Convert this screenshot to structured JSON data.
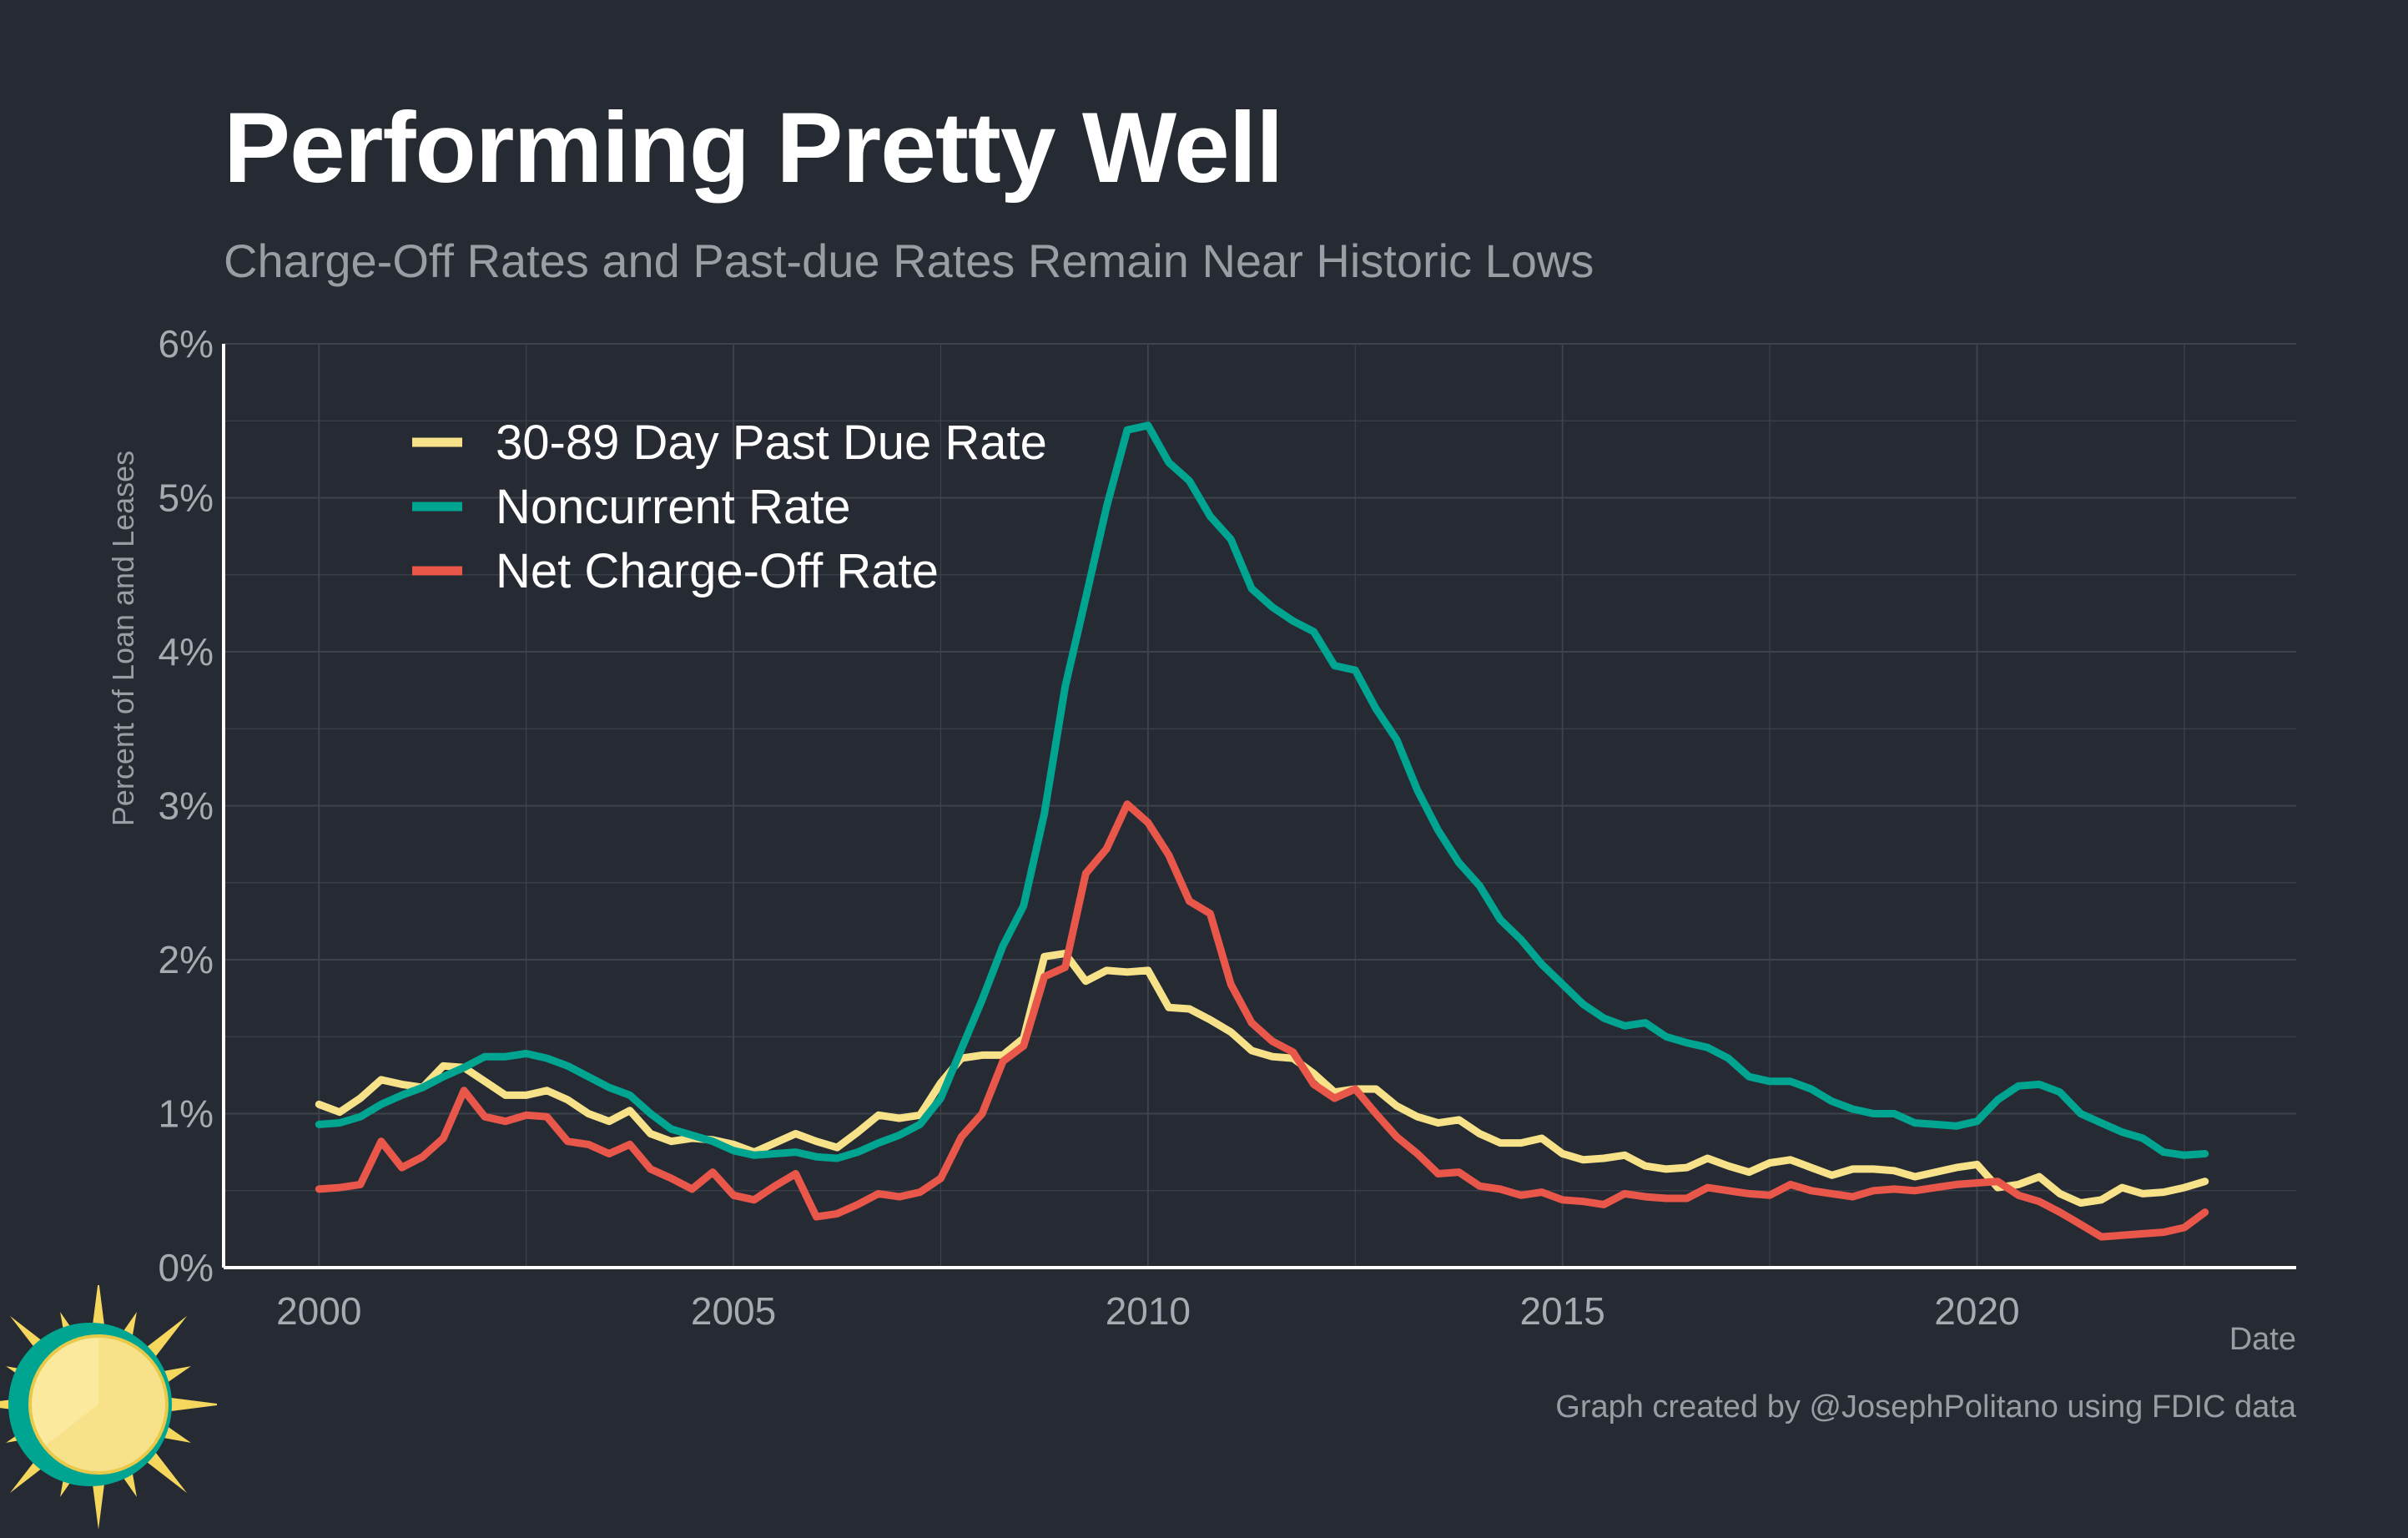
{
  "chart_data": {
    "type": "line",
    "title": "Performing Pretty Well",
    "subtitle": "Charge-Off Rates and Past-due Rates Remain Near Historic Lows",
    "xlabel": "Date",
    "ylabel": "Percent of Loan and Leases",
    "credit": "Graph created by @JosephPolitano using FDIC data",
    "xlim": [
      1998.85,
      2023.85
    ],
    "ylim": [
      0,
      6
    ],
    "x_ticks": [
      2000,
      2005,
      2010,
      2015,
      2020
    ],
    "x_tick_labels": [
      "2000",
      "2005",
      "2010",
      "2015",
      "2020"
    ],
    "y_ticks": [
      0,
      1,
      2,
      3,
      4,
      5,
      6
    ],
    "y_tick_labels": [
      "0%",
      "1%",
      "2%",
      "3%",
      "4%",
      "5%",
      "6%"
    ],
    "grid": true,
    "legend_position": "top-left",
    "series": [
      {
        "name": "30-89 Day Past Due Rate",
        "color": "#f7e189",
        "x": [
          2000.0,
          2000.25,
          2000.5,
          2000.75,
          2001.0,
          2001.25,
          2001.5,
          2001.75,
          2002.0,
          2002.25,
          2002.5,
          2002.75,
          2003.0,
          2003.25,
          2003.5,
          2003.75,
          2004.0,
          2004.25,
          2004.5,
          2004.75,
          2005.0,
          2005.25,
          2005.5,
          2005.75,
          2006.0,
          2006.25,
          2006.5,
          2006.75,
          2007.0,
          2007.25,
          2007.5,
          2007.75,
          2008.0,
          2008.25,
          2008.5,
          2008.75,
          2009.0,
          2009.25,
          2009.5,
          2009.75,
          2010.0,
          2010.25,
          2010.5,
          2010.75,
          2011.0,
          2011.25,
          2011.5,
          2011.75,
          2012.0,
          2012.25,
          2012.5,
          2012.75,
          2013.0,
          2013.25,
          2013.5,
          2013.75,
          2014.0,
          2014.25,
          2014.5,
          2014.75,
          2015.0,
          2015.25,
          2015.5,
          2015.75,
          2016.0,
          2016.25,
          2016.5,
          2016.75,
          2017.0,
          2017.25,
          2017.5,
          2017.75,
          2018.0,
          2018.25,
          2018.5,
          2018.75,
          2019.0,
          2019.25,
          2019.5,
          2019.75,
          2020.0,
          2020.25,
          2020.5,
          2020.75,
          2021.0,
          2021.25,
          2021.5,
          2021.75,
          2022.0,
          2022.25,
          2022.5,
          2022.75
        ],
        "values": [
          1.06,
          1.01,
          1.1,
          1.22,
          1.19,
          1.17,
          1.31,
          1.3,
          1.21,
          1.12,
          1.12,
          1.15,
          1.09,
          1.0,
          0.95,
          1.02,
          0.87,
          0.82,
          0.84,
          0.83,
          0.8,
          0.75,
          0.81,
          0.87,
          0.82,
          0.78,
          0.88,
          0.99,
          0.97,
          0.99,
          1.2,
          1.36,
          1.38,
          1.38,
          1.49,
          2.02,
          2.04,
          1.86,
          1.93,
          1.92,
          1.93,
          1.69,
          1.68,
          1.61,
          1.53,
          1.41,
          1.37,
          1.36,
          1.26,
          1.14,
          1.16,
          1.16,
          1.05,
          0.98,
          0.94,
          0.96,
          0.87,
          0.81,
          0.81,
          0.84,
          0.74,
          0.7,
          0.71,
          0.73,
          0.66,
          0.64,
          0.65,
          0.71,
          0.66,
          0.62,
          0.68,
          0.7,
          0.65,
          0.6,
          0.64,
          0.64,
          0.63,
          0.59,
          0.62,
          0.65,
          0.67,
          0.52,
          0.54,
          0.59,
          0.48,
          0.42,
          0.44,
          0.52,
          0.48,
          0.49,
          0.52,
          0.56
        ]
      },
      {
        "name": "Noncurrent Rate",
        "color": "#00a591",
        "x": [
          2000.0,
          2000.25,
          2000.5,
          2000.75,
          2001.0,
          2001.25,
          2001.5,
          2001.75,
          2002.0,
          2002.25,
          2002.5,
          2002.75,
          2003.0,
          2003.25,
          2003.5,
          2003.75,
          2004.0,
          2004.25,
          2004.5,
          2004.75,
          2005.0,
          2005.25,
          2005.5,
          2005.75,
          2006.0,
          2006.25,
          2006.5,
          2006.75,
          2007.0,
          2007.25,
          2007.5,
          2007.75,
          2008.0,
          2008.25,
          2008.5,
          2008.75,
          2009.0,
          2009.25,
          2009.5,
          2009.75,
          2010.0,
          2010.25,
          2010.5,
          2010.75,
          2011.0,
          2011.25,
          2011.5,
          2011.75,
          2012.0,
          2012.25,
          2012.5,
          2012.75,
          2013.0,
          2013.25,
          2013.5,
          2013.75,
          2014.0,
          2014.25,
          2014.5,
          2014.75,
          2015.0,
          2015.25,
          2015.5,
          2015.75,
          2016.0,
          2016.25,
          2016.5,
          2016.75,
          2017.0,
          2017.25,
          2017.5,
          2017.75,
          2018.0,
          2018.25,
          2018.5,
          2018.75,
          2019.0,
          2019.25,
          2019.5,
          2019.75,
          2020.0,
          2020.25,
          2020.5,
          2020.75,
          2021.0,
          2021.25,
          2021.5,
          2021.75,
          2022.0,
          2022.25,
          2022.5,
          2022.75
        ],
        "values": [
          0.93,
          0.94,
          0.98,
          1.06,
          1.12,
          1.17,
          1.24,
          1.3,
          1.37,
          1.37,
          1.39,
          1.36,
          1.31,
          1.24,
          1.17,
          1.12,
          1.0,
          0.9,
          0.86,
          0.82,
          0.76,
          0.73,
          0.74,
          0.75,
          0.72,
          0.71,
          0.75,
          0.81,
          0.86,
          0.93,
          1.1,
          1.42,
          1.74,
          2.09,
          2.35,
          2.95,
          3.77,
          4.35,
          4.94,
          5.44,
          5.47,
          5.23,
          5.11,
          4.88,
          4.73,
          4.41,
          4.29,
          4.2,
          4.13,
          3.91,
          3.88,
          3.63,
          3.43,
          3.1,
          2.84,
          2.63,
          2.48,
          2.26,
          2.13,
          1.97,
          1.84,
          1.71,
          1.62,
          1.57,
          1.59,
          1.5,
          1.46,
          1.43,
          1.36,
          1.24,
          1.21,
          1.21,
          1.16,
          1.08,
          1.03,
          1.0,
          1.0,
          0.94,
          0.93,
          0.92,
          0.95,
          1.09,
          1.18,
          1.19,
          1.14,
          1.0,
          0.94,
          0.88,
          0.84,
          0.75,
          0.73,
          0.74
        ]
      },
      {
        "name": "Net Charge-Off Rate",
        "color": "#e9564a",
        "x": [
          2000.0,
          2000.25,
          2000.5,
          2000.75,
          2001.0,
          2001.25,
          2001.5,
          2001.75,
          2002.0,
          2002.25,
          2002.5,
          2002.75,
          2003.0,
          2003.25,
          2003.5,
          2003.75,
          2004.0,
          2004.25,
          2004.5,
          2004.75,
          2005.0,
          2005.25,
          2005.5,
          2005.75,
          2006.0,
          2006.25,
          2006.5,
          2006.75,
          2007.0,
          2007.25,
          2007.5,
          2007.75,
          2008.0,
          2008.25,
          2008.5,
          2008.75,
          2009.0,
          2009.25,
          2009.5,
          2009.75,
          2010.0,
          2010.25,
          2010.5,
          2010.75,
          2011.0,
          2011.25,
          2011.5,
          2011.75,
          2012.0,
          2012.25,
          2012.5,
          2012.75,
          2013.0,
          2013.25,
          2013.5,
          2013.75,
          2014.0,
          2014.25,
          2014.5,
          2014.75,
          2015.0,
          2015.25,
          2015.5,
          2015.75,
          2016.0,
          2016.25,
          2016.5,
          2016.75,
          2017.0,
          2017.25,
          2017.5,
          2017.75,
          2018.0,
          2018.25,
          2018.5,
          2018.75,
          2019.0,
          2019.25,
          2019.5,
          2019.75,
          2020.0,
          2020.25,
          2020.5,
          2020.75,
          2021.0,
          2021.25,
          2021.5,
          2021.75,
          2022.0,
          2022.25,
          2022.5,
          2022.75
        ],
        "values": [
          0.51,
          0.52,
          0.54,
          0.82,
          0.65,
          0.72,
          0.84,
          1.15,
          0.98,
          0.95,
          0.99,
          0.98,
          0.82,
          0.8,
          0.74,
          0.8,
          0.64,
          0.58,
          0.51,
          0.62,
          0.47,
          0.44,
          0.53,
          0.61,
          0.33,
          0.35,
          0.41,
          0.48,
          0.46,
          0.49,
          0.58,
          0.85,
          1.0,
          1.34,
          1.44,
          1.89,
          1.95,
          2.56,
          2.72,
          3.01,
          2.89,
          2.68,
          2.38,
          2.3,
          1.84,
          1.59,
          1.47,
          1.4,
          1.19,
          1.1,
          1.16,
          1.0,
          0.85,
          0.74,
          0.61,
          0.62,
          0.53,
          0.51,
          0.47,
          0.49,
          0.44,
          0.43,
          0.41,
          0.48,
          0.46,
          0.45,
          0.45,
          0.52,
          0.5,
          0.48,
          0.47,
          0.54,
          0.5,
          0.48,
          0.46,
          0.5,
          0.51,
          0.5,
          0.52,
          0.54,
          0.55,
          0.56,
          0.47,
          0.43,
          0.36,
          0.28,
          0.2,
          0.21,
          0.22,
          0.23,
          0.26,
          0.36
        ]
      }
    ]
  },
  "colors": {
    "background": "#252a33",
    "grid": "#3d424b",
    "axis": "#ffffff",
    "title": "#ffffff",
    "muted_text": "#9a9da3",
    "tick_text": "#a7aab0"
  },
  "logo": {
    "icon": "sun-logo-icon"
  }
}
